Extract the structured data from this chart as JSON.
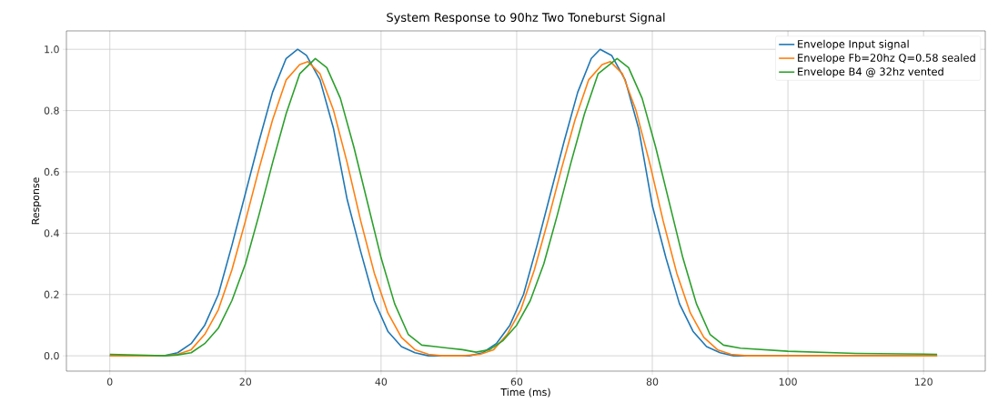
{
  "chart_data": {
    "type": "line",
    "title": "System Response to 90hz Two Toneburst Signal",
    "xlabel": "Time (ms)",
    "ylabel": "Response",
    "xlim": [
      -6.4,
      129.1
    ],
    "ylim": [
      -0.05,
      1.06
    ],
    "xticks": [
      0,
      20,
      40,
      60,
      80,
      100,
      120
    ],
    "yticks": [
      {
        "value": 0,
        "label": "0.0"
      },
      {
        "value": 0.2,
        "label": "0.2"
      },
      {
        "value": 0.4,
        "label": "0.4"
      },
      {
        "value": 0.6,
        "label": "0.6"
      },
      {
        "value": 0.8,
        "label": "0.8"
      },
      {
        "value": 1,
        "label": "1.0"
      }
    ],
    "grid": true,
    "legend": "top right",
    "series": [
      {
        "name": "Envelope Input signal",
        "color": "#1f77b4",
        "x": [
          0,
          8,
          10,
          12,
          14,
          16,
          18,
          20,
          22,
          24,
          26,
          27.7,
          29,
          31,
          33,
          35,
          37,
          39,
          41,
          43,
          45,
          47,
          50,
          53,
          55,
          57,
          59,
          61,
          63,
          65,
          67,
          69,
          71,
          72.3,
          74,
          76,
          78,
          80,
          82,
          84,
          86,
          88,
          90,
          92,
          122
        ],
        "values": [
          0,
          0,
          0.01,
          0.04,
          0.1,
          0.2,
          0.36,
          0.53,
          0.7,
          0.86,
          0.97,
          1.0,
          0.98,
          0.9,
          0.74,
          0.51,
          0.34,
          0.18,
          0.08,
          0.03,
          0.01,
          0,
          0,
          0,
          0.01,
          0.04,
          0.1,
          0.2,
          0.36,
          0.53,
          0.7,
          0.86,
          0.97,
          1.0,
          0.98,
          0.9,
          0.74,
          0.49,
          0.32,
          0.17,
          0.08,
          0.03,
          0.01,
          0,
          0
        ]
      },
      {
        "name": "Envelope Fb=20hz Q=0.58 sealed",
        "color": "#ff7f0e",
        "x": [
          0,
          8,
          10,
          12,
          14,
          16,
          18,
          20,
          22,
          24,
          26,
          28,
          29.2,
          31,
          33,
          35,
          37,
          39,
          41,
          43,
          45,
          47,
          49,
          52,
          54.6,
          56.6,
          58.6,
          60.6,
          62.6,
          64.6,
          66.6,
          68.6,
          70.6,
          72.6,
          73.8,
          75.6,
          77.6,
          79.6,
          81.6,
          83.6,
          85.6,
          87.6,
          89.6,
          91.6,
          94,
          122
        ],
        "values": [
          0,
          0,
          0.005,
          0.02,
          0.07,
          0.15,
          0.28,
          0.44,
          0.61,
          0.77,
          0.9,
          0.95,
          0.96,
          0.92,
          0.8,
          0.63,
          0.44,
          0.27,
          0.14,
          0.06,
          0.02,
          0.005,
          0,
          0,
          0.005,
          0.02,
          0.07,
          0.15,
          0.28,
          0.44,
          0.61,
          0.77,
          0.9,
          0.95,
          0.96,
          0.92,
          0.8,
          0.63,
          0.44,
          0.27,
          0.14,
          0.06,
          0.02,
          0.005,
          0,
          0
        ]
      },
      {
        "name": "Envelope B4 @ 32hz vented",
        "color": "#2ca02c",
        "x": [
          0,
          8,
          10,
          12,
          14,
          16,
          18,
          20,
          22,
          24,
          26,
          28,
          30.3,
          32,
          34,
          36,
          38,
          40,
          42,
          44,
          46,
          48,
          50,
          52,
          54,
          56,
          58,
          60,
          62,
          64,
          66,
          68,
          70,
          72,
          74.8,
          76.5,
          78.5,
          80.5,
          82.5,
          84.5,
          86.5,
          88.5,
          90.5,
          93,
          100,
          110,
          122
        ],
        "values": [
          0.005,
          0,
          0.003,
          0.01,
          0.04,
          0.09,
          0.18,
          0.3,
          0.46,
          0.63,
          0.79,
          0.92,
          0.97,
          0.94,
          0.84,
          0.68,
          0.5,
          0.32,
          0.17,
          0.07,
          0.035,
          0.03,
          0.025,
          0.02,
          0.012,
          0.02,
          0.05,
          0.1,
          0.18,
          0.3,
          0.46,
          0.63,
          0.79,
          0.92,
          0.97,
          0.94,
          0.84,
          0.68,
          0.5,
          0.32,
          0.17,
          0.07,
          0.035,
          0.025,
          0.015,
          0.008,
          0.005
        ]
      }
    ]
  }
}
